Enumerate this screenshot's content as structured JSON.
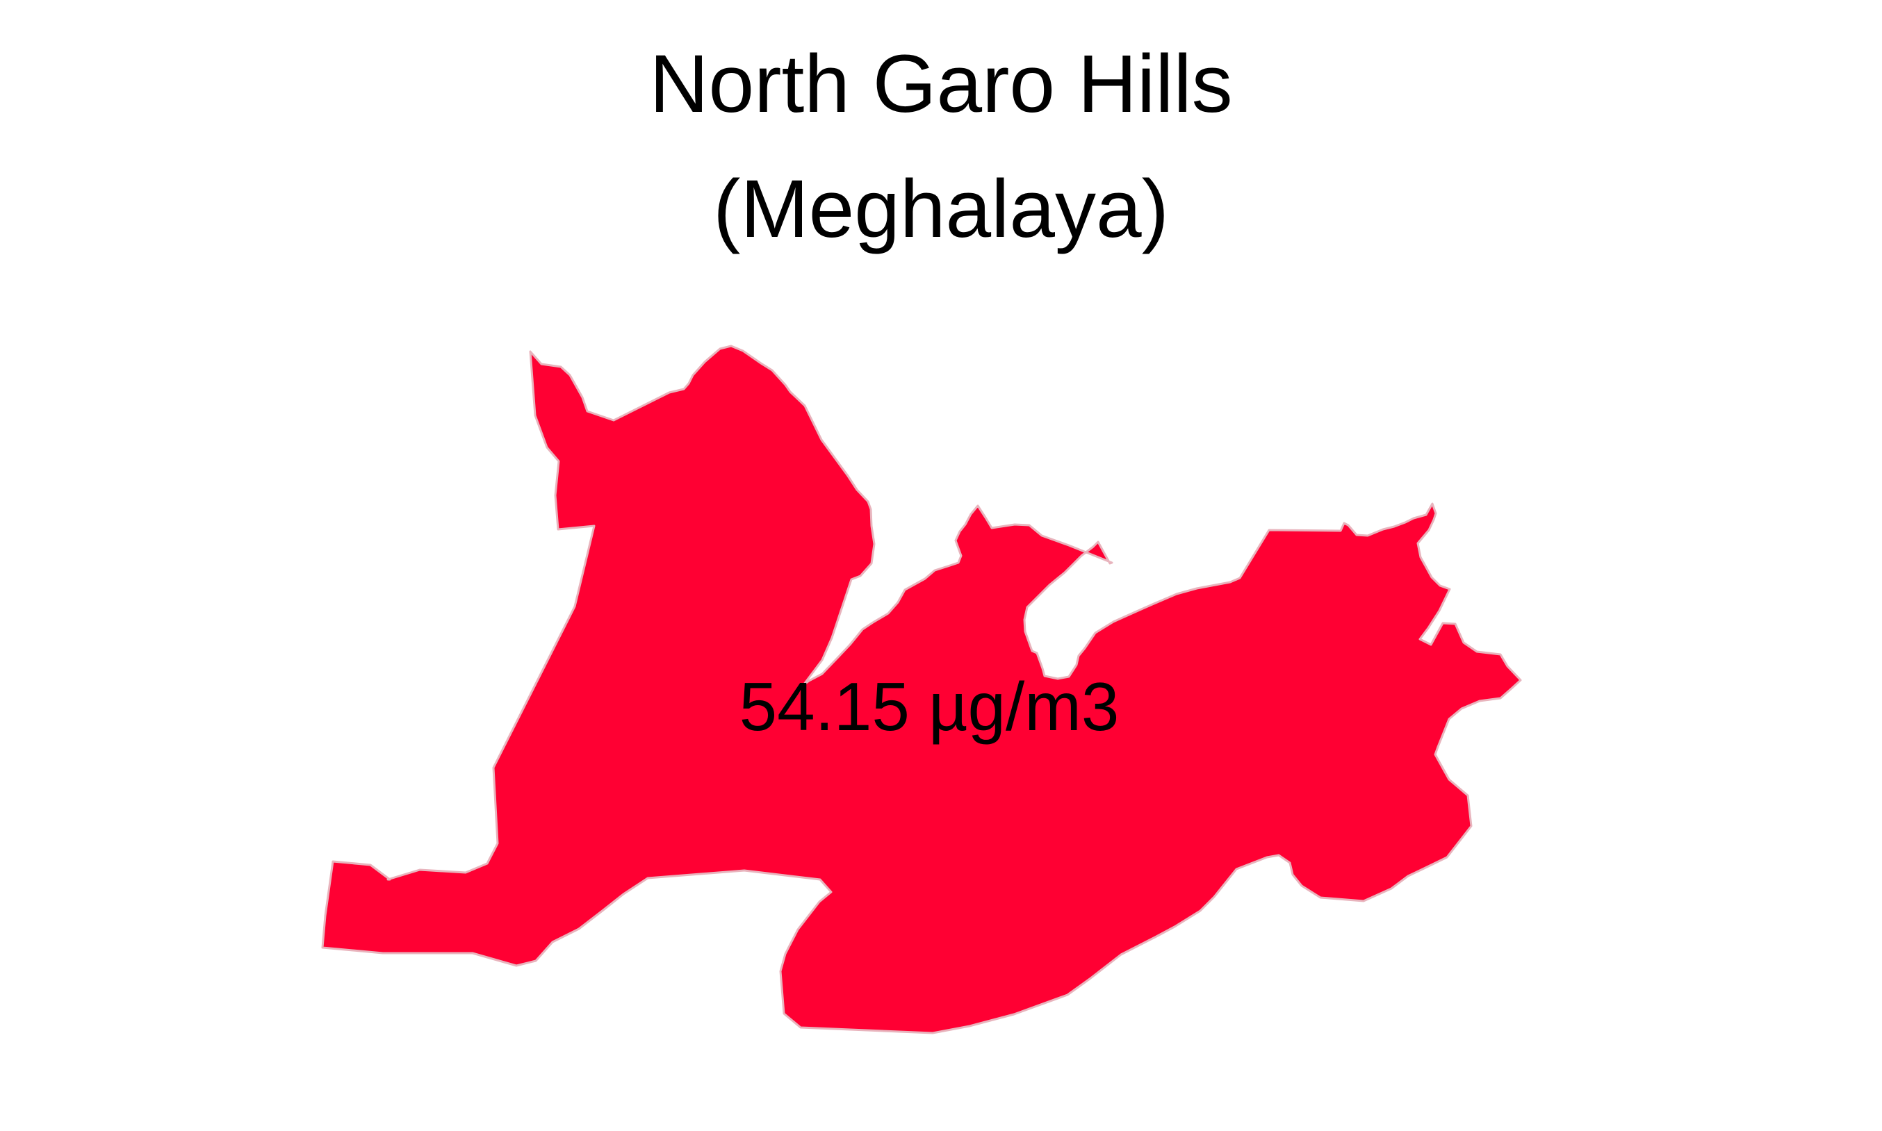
{
  "map": {
    "title_line_1": "North Garo Hills",
    "title_line_2": "(Meghalaya)",
    "region": {
      "district": "North Garo Hills",
      "state": "Meghalaya",
      "value": 54.15,
      "unit": "µg/m3",
      "label": "54.15 µg/m3",
      "fill_color": "#ff0033",
      "border_color": "#e8b4bd"
    },
    "background_color": "#ffffff"
  }
}
